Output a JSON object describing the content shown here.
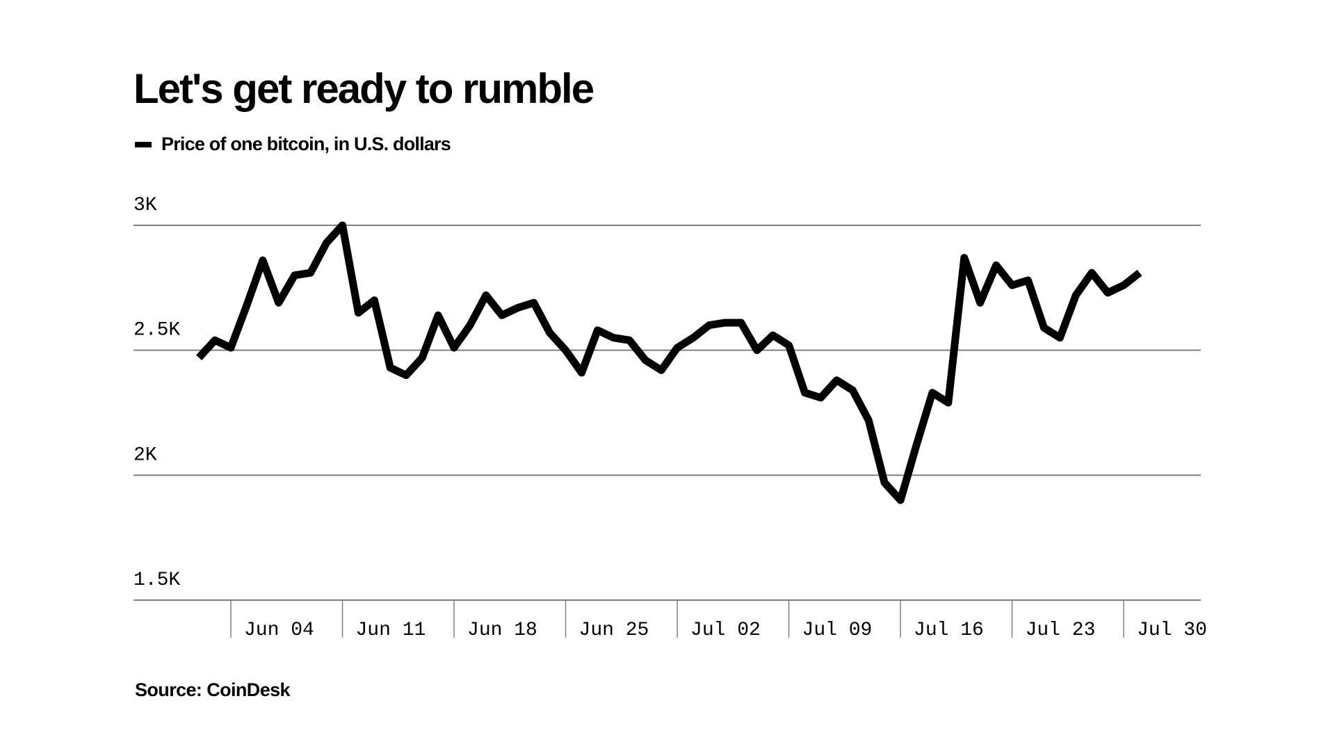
{
  "header": {
    "title": "Let's get ready to rumble",
    "legend_label": "Price of one bitcoin, in U.S. dollars"
  },
  "footer": {
    "source": "Source: CoinDesk"
  },
  "colors": {
    "line": "#000000",
    "grid": "#808080",
    "background": "#ffffff"
  },
  "chart_data": {
    "type": "line",
    "title": "Let's get ready to rumble",
    "subtitle": "Price of one bitcoin, in U.S. dollars",
    "xlabel": "",
    "ylabel": "",
    "ylim": [
      1500,
      3000
    ],
    "yticks": [
      1500,
      2000,
      2500,
      3000
    ],
    "ytick_labels": [
      "1.5K",
      "2K",
      "2.5K",
      "3K"
    ],
    "grid": true,
    "legend_position": "top-left",
    "x_day_range": [
      -6,
      63
    ],
    "xticks": [
      {
        "day": 0,
        "label": "Jun 04"
      },
      {
        "day": 7,
        "label": "Jun 11"
      },
      {
        "day": 14,
        "label": "Jun 18"
      },
      {
        "day": 21,
        "label": "Jun 25"
      },
      {
        "day": 28,
        "label": "Jul 02"
      },
      {
        "day": 35,
        "label": "Jul 09"
      },
      {
        "day": 42,
        "label": "Jul 16"
      },
      {
        "day": 49,
        "label": "Jul 23"
      },
      {
        "day": 56,
        "label": "Jul 30"
      }
    ],
    "series": [
      {
        "name": "Price of one bitcoin, in U.S. dollars",
        "start_date": "Jun 02",
        "start_day": -2,
        "values": [
          2470,
          2540,
          2510,
          2680,
          2860,
          2690,
          2800,
          2810,
          2930,
          3000,
          2650,
          2700,
          2430,
          2400,
          2470,
          2640,
          2510,
          2600,
          2720,
          2640,
          2670,
          2690,
          2570,
          2500,
          2410,
          2580,
          2550,
          2540,
          2460,
          2420,
          2510,
          2550,
          2600,
          2610,
          2610,
          2500,
          2560,
          2520,
          2330,
          2310,
          2380,
          2340,
          2220,
          1970,
          1900,
          2120,
          2330,
          2290,
          2870,
          2690,
          2840,
          2760,
          2780,
          2590,
          2550,
          2720,
          2810,
          2730,
          2760,
          2810
        ]
      }
    ],
    "source": "Source: CoinDesk"
  }
}
